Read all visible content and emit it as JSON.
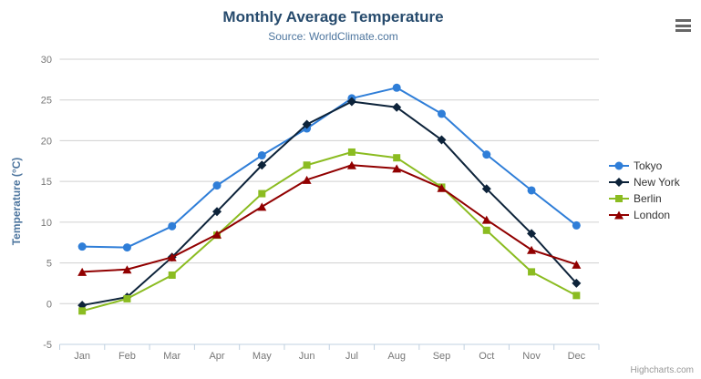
{
  "chart_data": {
    "type": "line",
    "title": "Monthly Average Temperature",
    "subtitle": "Source: WorldClimate.com",
    "xlabel": "",
    "ylabel": "Temperature (°C)",
    "categories": [
      "Jan",
      "Feb",
      "Mar",
      "Apr",
      "May",
      "Jun",
      "Jul",
      "Aug",
      "Sep",
      "Oct",
      "Nov",
      "Dec"
    ],
    "yticks": [
      -5,
      0,
      5,
      10,
      15,
      20,
      25,
      30
    ],
    "ylim": [
      -5,
      30
    ],
    "grid": true,
    "legend_position": "right",
    "series": [
      {
        "name": "Tokyo",
        "color": "#2f7ed8",
        "marker": "circle",
        "values": [
          7.0,
          6.9,
          9.5,
          14.5,
          18.2,
          21.5,
          25.2,
          26.5,
          23.3,
          18.3,
          13.9,
          9.6
        ]
      },
      {
        "name": "New York",
        "color": "#0d233a",
        "marker": "diamond",
        "values": [
          -0.2,
          0.8,
          5.7,
          11.3,
          17.0,
          22.0,
          24.8,
          24.1,
          20.1,
          14.1,
          8.6,
          2.5
        ]
      },
      {
        "name": "Berlin",
        "color": "#8bbc21",
        "marker": "square",
        "values": [
          -0.9,
          0.6,
          3.5,
          8.4,
          13.5,
          17.0,
          18.6,
          17.9,
          14.3,
          9.0,
          3.9,
          1.0
        ]
      },
      {
        "name": "London",
        "color": "#910000",
        "marker": "triangle",
        "values": [
          3.9,
          4.2,
          5.7,
          8.5,
          11.9,
          15.2,
          17.0,
          16.6,
          14.2,
          10.3,
          6.6,
          4.8
        ]
      }
    ]
  },
  "colors": {
    "title": "#274b6d",
    "subtitle": "#4d759e",
    "axis_title": "#4d759e",
    "axis_labels": "#777777",
    "grid_line": "#d0d0d0",
    "axis_line": "#c0d0e0",
    "legend_text": "#333333",
    "burger_icon": "#666666"
  },
  "credits": {
    "text": "Highcharts.com"
  },
  "icons": {
    "menu": "hamburger-icon"
  }
}
